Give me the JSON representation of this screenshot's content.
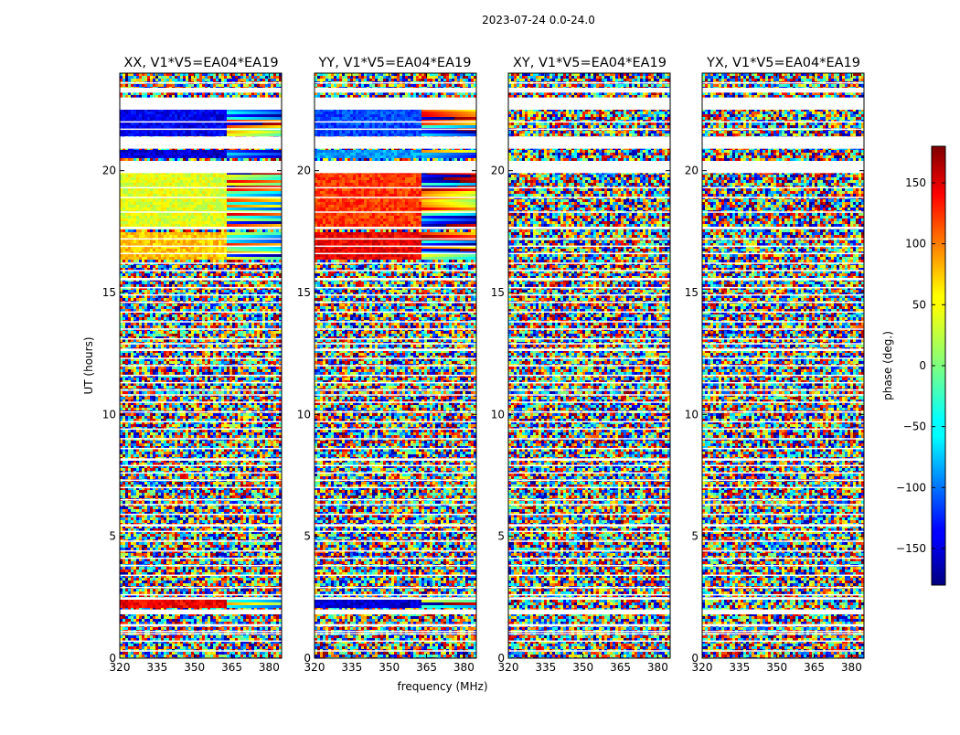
{
  "figure_title": "2023-07-24 0.0-24.0",
  "colorbar": {
    "label": "phase (deg.)",
    "ticks": [
      -150,
      -100,
      -50,
      0,
      50,
      100,
      150
    ],
    "tick_labels": [
      "−150",
      "−100",
      "−50",
      "0",
      "50",
      "100",
      "150"
    ],
    "range": [
      -180,
      180
    ],
    "colormap": "jet",
    "colors": [
      "#00007f",
      "#0000ff",
      "#007fff",
      "#00ffff",
      "#7fff7f",
      "#ffff00",
      "#ff7f00",
      "#ff0000",
      "#7f0000"
    ]
  },
  "chart_data": {
    "type": "heatmap",
    "title": "2023-07-24 0.0-24.0",
    "xlabel": "frequency (MHz)",
    "ylabel": "UT (hours)",
    "xlim": [
      320,
      385
    ],
    "ylim": [
      0,
      24
    ],
    "x_ticks": [
      320,
      335,
      350,
      365,
      380
    ],
    "y_ticks": [
      0,
      5,
      10,
      15,
      20
    ],
    "z_label": "phase (deg.)",
    "z_range": [
      -180,
      180
    ],
    "panels": [
      {
        "title": "XX, V1*V5=EA04*EA19",
        "polarization": "XX",
        "coherent_bands": [
          {
            "ut_start": 21.4,
            "ut_end": 22.5,
            "freq_end": 363,
            "phase_deg": -140
          },
          {
            "ut_start": 20.5,
            "ut_end": 20.9,
            "freq_end": 363,
            "phase_deg": -150
          },
          {
            "ut_start": 17.6,
            "ut_end": 19.9,
            "freq_end": 363,
            "phase_deg": 35
          },
          {
            "ut_start": 16.4,
            "ut_end": 17.5,
            "freq_end": 363,
            "phase_deg": 65
          },
          {
            "ut_start": 2.1,
            "ut_end": 2.4,
            "freq_end": 363,
            "phase_deg": 140
          }
        ]
      },
      {
        "title": "YY, V1*V5=EA04*EA19",
        "polarization": "YY",
        "coherent_bands": [
          {
            "ut_start": 21.4,
            "ut_end": 22.5,
            "freq_end": 363,
            "phase_deg": -110
          },
          {
            "ut_start": 20.5,
            "ut_end": 20.9,
            "freq_end": 363,
            "phase_deg": -80
          },
          {
            "ut_start": 17.6,
            "ut_end": 19.9,
            "freq_end": 363,
            "phase_deg": 115
          },
          {
            "ut_start": 16.4,
            "ut_end": 17.5,
            "freq_end": 363,
            "phase_deg": 140
          },
          {
            "ut_start": 2.1,
            "ut_end": 2.4,
            "freq_end": 363,
            "phase_deg": -150
          }
        ]
      },
      {
        "title": "XY, V1*V5=EA04*EA19",
        "polarization": "XY",
        "coherent_bands": []
      },
      {
        "title": "YX, V1*V5=EA04*EA19",
        "polarization": "YX",
        "coherent_bands": []
      }
    ],
    "gaps_ut": [
      [
        23.2,
        23.4
      ],
      [
        22.5,
        23.0
      ],
      [
        20.9,
        21.4
      ],
      [
        19.9,
        20.4
      ],
      [
        2.4,
        2.5
      ],
      [
        1.8,
        2.0
      ],
      [
        1.3,
        1.4
      ],
      [
        15.5,
        15.6
      ],
      [
        12.6,
        12.7
      ],
      [
        8.1,
        8.2
      ],
      [
        5.4,
        5.5
      ],
      [
        17.6,
        17.7
      ]
    ],
    "flag_lines_ut": [
      0.3,
      0.7,
      1.0,
      1.1,
      2.6,
      2.9,
      3.4,
      3.8,
      4.1,
      4.4,
      4.8,
      5.2,
      5.9,
      6.3,
      6.5,
      7.0,
      7.3,
      7.6,
      7.9,
      8.6,
      9.0,
      9.4,
      9.7,
      10.1,
      10.5,
      10.8,
      11.0,
      11.3,
      11.6,
      12.0,
      12.3,
      12.9,
      13.1,
      13.5,
      13.8,
      14.2,
      14.6,
      14.9,
      15.2,
      15.9,
      16.2,
      16.6,
      16.9,
      17.2,
      18.3,
      18.9,
      19.3,
      21.7,
      22.0,
      23.6
    ]
  }
}
